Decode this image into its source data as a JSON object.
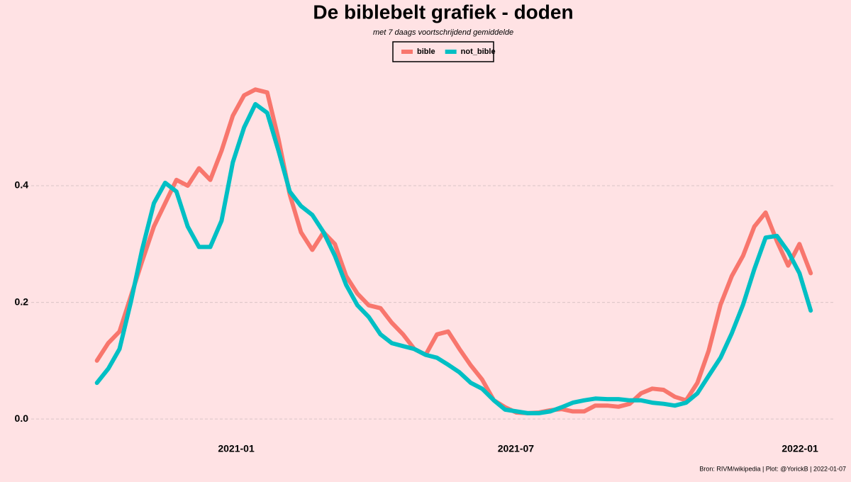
{
  "chart_data": {
    "type": "line",
    "title": "De biblebelt grafiek - doden",
    "subtitle": "met 7 daags voortschrijdend gemiddelde",
    "caption": "Bron: RIVM/wikipedia | Plot: @YorickB |  2022-01-07",
    "legend": "top",
    "grid": true,
    "xlim": [
      2020.61,
      2022.06
    ],
    "xticks": [
      {
        "value": 2021.0,
        "label": "2021-01"
      },
      {
        "value": 2021.496,
        "label": "2021-07"
      },
      {
        "value": 2022.0,
        "label": "2022-01"
      }
    ],
    "ylim": [
      -0.04,
      0.6
    ],
    "yticks": [
      {
        "value": 0,
        "label": "0.0"
      },
      {
        "value": 0.2,
        "label": "0.2"
      },
      {
        "value": 0.4,
        "label": "0.4"
      }
    ],
    "x": [
      2020.753,
      2020.773,
      2020.793,
      2020.813,
      2020.833,
      2020.854,
      2020.874,
      2020.894,
      2020.914,
      2020.934,
      2020.954,
      2020.974,
      2020.994,
      2021.014,
      2021.034,
      2021.055,
      2021.075,
      2021.095,
      2021.115,
      2021.135,
      2021.155,
      2021.175,
      2021.195,
      2021.215,
      2021.235,
      2021.256,
      2021.276,
      2021.296,
      2021.316,
      2021.336,
      2021.356,
      2021.376,
      2021.396,
      2021.416,
      2021.436,
      2021.457,
      2021.477,
      2021.497,
      2021.517,
      2021.537,
      2021.557,
      2021.577,
      2021.597,
      2021.617,
      2021.637,
      2021.658,
      2021.678,
      2021.698,
      2021.718,
      2021.738,
      2021.758,
      2021.778,
      2021.798,
      2021.818,
      2021.838,
      2021.859,
      2021.879,
      2021.899,
      2021.919,
      2021.939,
      2021.959,
      2021.979,
      2021.999,
      2022.019
    ],
    "series": [
      {
        "name": "bible",
        "color": "#f8766d",
        "values": [
          0.1,
          0.13,
          0.15,
          0.21,
          0.27,
          0.33,
          0.37,
          0.41,
          0.4,
          0.43,
          0.41,
          0.46,
          0.52,
          0.555,
          0.565,
          0.56,
          0.48,
          0.385,
          0.32,
          0.29,
          0.32,
          0.3,
          0.245,
          0.215,
          0.195,
          0.19,
          0.165,
          0.145,
          0.12,
          0.11,
          0.145,
          0.15,
          0.12,
          0.092,
          0.068,
          0.032,
          0.02,
          0.011,
          0.01,
          0.011,
          0.015,
          0.017,
          0.013,
          0.013,
          0.023,
          0.023,
          0.021,
          0.026,
          0.044,
          0.052,
          0.05,
          0.038,
          0.032,
          0.062,
          0.117,
          0.196,
          0.245,
          0.28,
          0.33,
          0.354,
          0.305,
          0.263,
          0.3,
          0.25
        ]
      },
      {
        "name": "not_bible",
        "color": "#00bfc4",
        "values": [
          0.062,
          0.086,
          0.12,
          0.2,
          0.29,
          0.37,
          0.405,
          0.39,
          0.33,
          0.295,
          0.295,
          0.34,
          0.44,
          0.5,
          0.54,
          0.525,
          0.46,
          0.39,
          0.365,
          0.35,
          0.32,
          0.28,
          0.23,
          0.195,
          0.175,
          0.145,
          0.13,
          0.125,
          0.12,
          0.11,
          0.105,
          0.093,
          0.08,
          0.062,
          0.052,
          0.032,
          0.016,
          0.013,
          0.01,
          0.01,
          0.013,
          0.02,
          0.028,
          0.032,
          0.035,
          0.034,
          0.034,
          0.032,
          0.032,
          0.028,
          0.026,
          0.023,
          0.028,
          0.044,
          0.074,
          0.105,
          0.147,
          0.196,
          0.257,
          0.311,
          0.314,
          0.287,
          0.25,
          0.186
        ]
      }
    ]
  }
}
